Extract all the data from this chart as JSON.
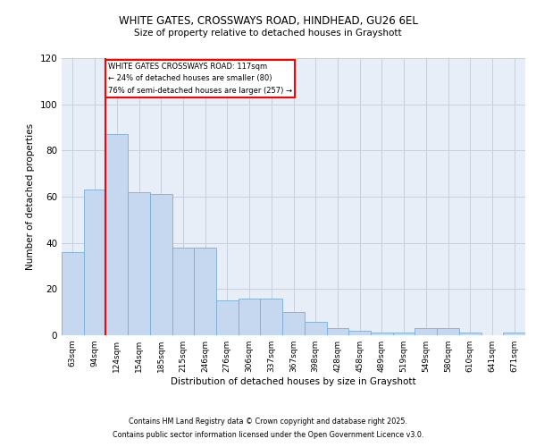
{
  "title1": "WHITE GATES, CROSSWAYS ROAD, HINDHEAD, GU26 6EL",
  "title2": "Size of property relative to detached houses in Grayshott",
  "xlabel": "Distribution of detached houses by size in Grayshott",
  "ylabel": "Number of detached properties",
  "bar_labels": [
    "63sqm",
    "94sqm",
    "124sqm",
    "154sqm",
    "185sqm",
    "215sqm",
    "246sqm",
    "276sqm",
    "306sqm",
    "337sqm",
    "367sqm",
    "398sqm",
    "428sqm",
    "458sqm",
    "489sqm",
    "519sqm",
    "549sqm",
    "580sqm",
    "610sqm",
    "641sqm",
    "671sqm"
  ],
  "bar_values": [
    36,
    63,
    87,
    62,
    61,
    38,
    38,
    15,
    16,
    16,
    10,
    6,
    3,
    2,
    1,
    1,
    3,
    3,
    1,
    0,
    1
  ],
  "bar_color": "#c5d8f0",
  "bar_edge_color": "#7aadd4",
  "grid_color": "#c8d0de",
  "background_color": "#e8eef8",
  "ref_line_x": 1.5,
  "ref_line_color": "red",
  "annotation_text": "WHITE GATES CROSSWAYS ROAD: 117sqm\n← 24% of detached houses are smaller (80)\n76% of semi-detached houses are larger (257) →",
  "annotation_box_color": "white",
  "annotation_box_edge": "red",
  "ylim": [
    0,
    120
  ],
  "yticks": [
    0,
    20,
    40,
    60,
    80,
    100,
    120
  ],
  "footnote1": "Contains HM Land Registry data © Crown copyright and database right 2025.",
  "footnote2": "Contains public sector information licensed under the Open Government Licence v3.0."
}
